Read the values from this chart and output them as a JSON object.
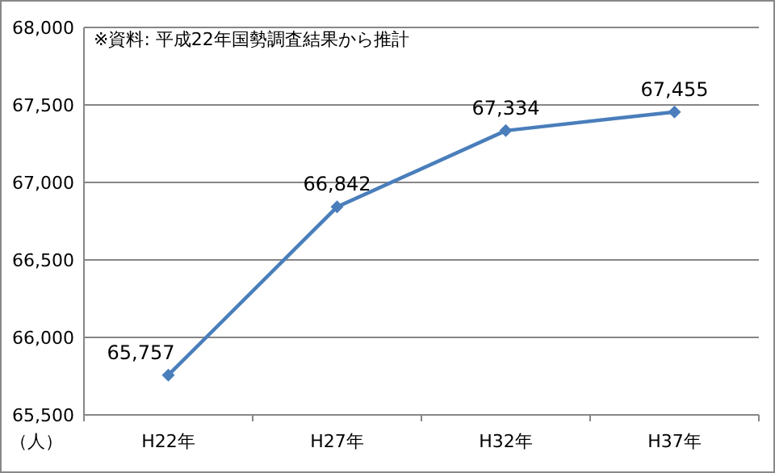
{
  "chart_data": {
    "type": "line",
    "categories": [
      "H22年",
      "H27年",
      "H32年",
      "H37年"
    ],
    "series": [
      {
        "color": "#4a7ebb",
        "values": [
          65757,
          66842,
          67334,
          67455
        ],
        "value_labels": [
          "65,757",
          "66,842",
          "67,334",
          "67,455"
        ]
      }
    ],
    "ylim": [
      65500,
      68000
    ],
    "yticks": [
      {
        "value": 65500,
        "label": "65,500"
      },
      {
        "value": 66000,
        "label": "66,000"
      },
      {
        "value": 66500,
        "label": "66,500"
      },
      {
        "value": 67000,
        "label": "67,000"
      },
      {
        "value": 67500,
        "label": "67,500"
      },
      {
        "value": 68000,
        "label": "68,000"
      }
    ],
    "ylabel": "（人）",
    "grid": "y",
    "marker": "diamond",
    "line_style": "solid",
    "annotations": [
      "※資料: 平成22年国勢調査結果から推計"
    ]
  }
}
